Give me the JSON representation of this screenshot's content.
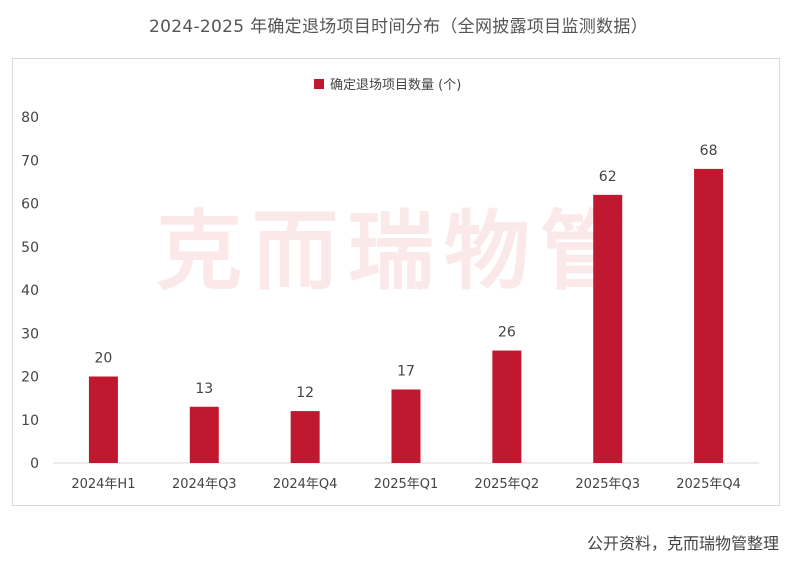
{
  "title": "2024-2025 年确定退场项目时间分布（全网披露项目监测数据）",
  "source": "公开资料，克而瑞物管整理",
  "watermark": "克而瑞物管",
  "colors": {
    "bar": "#c0182e",
    "text": "#444444",
    "axis": "#d9d9d9",
    "watermark": "#fbe9ea"
  },
  "chart_data": {
    "type": "bar",
    "categories": [
      "2024年H1",
      "2024年Q3",
      "2024年Q4",
      "2025年Q1",
      "2025年Q2",
      "2025年Q3",
      "2025年Q4"
    ],
    "series": [
      {
        "name": "确定退场项目数量 (个)",
        "values": [
          20,
          13,
          12,
          17,
          26,
          62,
          68
        ]
      }
    ],
    "ylim": [
      0,
      80
    ],
    "yticks": [
      0,
      10,
      20,
      30,
      40,
      50,
      60,
      70,
      80
    ],
    "legend_position": "top-center",
    "grid": false,
    "data_labels": true
  }
}
